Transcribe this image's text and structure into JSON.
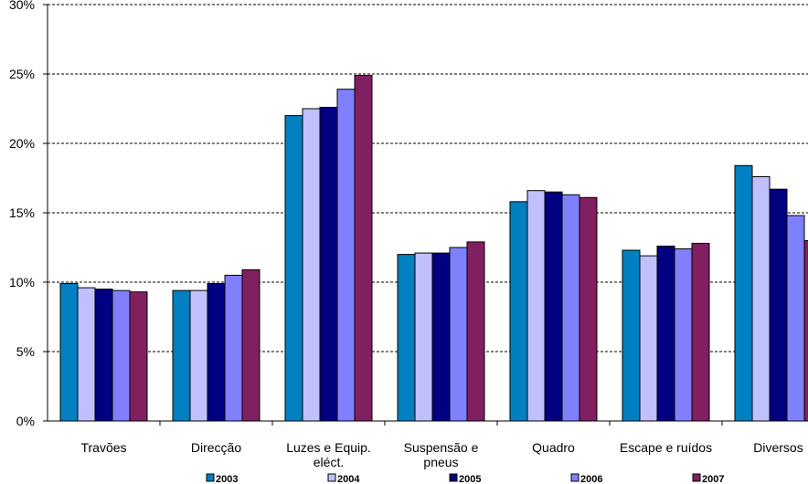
{
  "chart_data": {
    "type": "bar",
    "categories": [
      "Travões",
      "Direcção",
      "Luzes e Equip. eléct.",
      "Suspensão e pneus",
      "Quadro",
      "Escape e ruídos",
      "Diversos"
    ],
    "series": [
      {
        "name": "2003",
        "color": "#0080c0",
        "values": [
          9.9,
          9.4,
          22.0,
          12.0,
          15.8,
          12.3,
          18.4
        ]
      },
      {
        "name": "2004",
        "color": "#c0c0ff",
        "values": [
          9.6,
          9.4,
          22.5,
          12.1,
          16.6,
          11.9,
          17.6
        ]
      },
      {
        "name": "2005",
        "color": "#000080",
        "values": [
          9.5,
          9.9,
          22.6,
          12.1,
          16.5,
          12.6,
          16.7
        ]
      },
      {
        "name": "2006",
        "color": "#8080ff",
        "values": [
          9.4,
          10.5,
          23.9,
          12.5,
          16.3,
          12.4,
          14.8
        ]
      },
      {
        "name": "2007",
        "color": "#802060",
        "values": [
          9.3,
          10.9,
          24.9,
          12.9,
          16.1,
          12.8,
          13.0
        ]
      }
    ],
    "ylim": [
      0,
      30
    ],
    "yticks": [
      {
        "value": 0,
        "label": "0%"
      },
      {
        "value": 5,
        "label": "5%"
      },
      {
        "value": 10,
        "label": "10%"
      },
      {
        "value": 15,
        "label": "15%"
      },
      {
        "value": 20,
        "label": "20%"
      },
      {
        "value": 25,
        "label": "25%"
      },
      {
        "value": 30,
        "label": "30%"
      }
    ],
    "grid": true
  }
}
